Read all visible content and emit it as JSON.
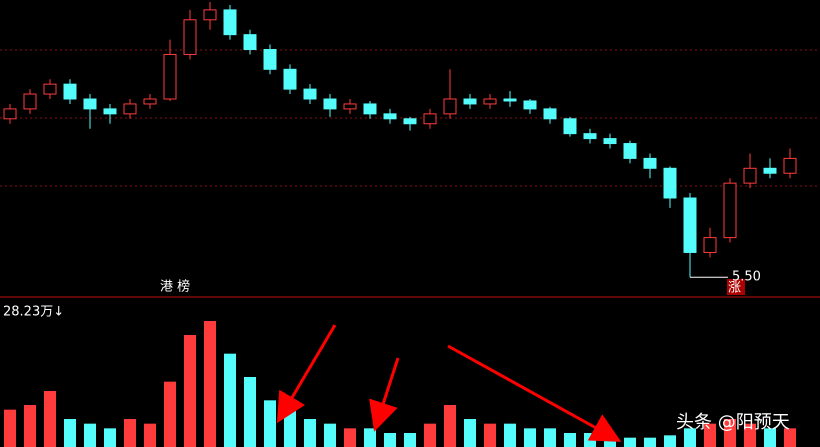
{
  "chart_data": [
    {
      "type": "candlestick",
      "open": [
        7.1,
        7.2,
        7.35,
        7.45,
        7.3,
        7.2,
        7.15,
        7.25,
        7.3,
        7.75,
        8.1,
        8.2,
        7.95,
        7.8,
        7.6,
        7.4,
        7.3,
        7.2,
        7.25,
        7.15,
        7.1,
        7.05,
        7.15,
        7.3,
        7.25,
        7.3,
        7.28,
        7.2,
        7.1,
        6.95,
        6.9,
        6.85,
        6.7,
        6.6,
        6.3,
        5.75,
        5.9,
        6.45,
        6.6,
        6.55
      ],
      "high": [
        7.25,
        7.4,
        7.5,
        7.5,
        7.35,
        7.25,
        7.3,
        7.35,
        7.9,
        8.2,
        8.28,
        8.25,
        8.0,
        7.85,
        7.65,
        7.45,
        7.35,
        7.3,
        7.28,
        7.2,
        7.12,
        7.2,
        7.6,
        7.35,
        7.35,
        7.38,
        7.3,
        7.22,
        7.12,
        7.0,
        6.95,
        6.88,
        6.75,
        6.62,
        6.35,
        6.0,
        6.5,
        6.75,
        6.7,
        6.8
      ],
      "low": [
        7.05,
        7.15,
        7.3,
        7.25,
        7.0,
        7.05,
        7.1,
        7.2,
        7.28,
        7.7,
        8.0,
        7.9,
        7.75,
        7.55,
        7.35,
        7.25,
        7.12,
        7.15,
        7.1,
        7.05,
        6.98,
        7.0,
        7.1,
        7.2,
        7.2,
        7.22,
        7.15,
        7.05,
        6.92,
        6.85,
        6.8,
        6.65,
        6.5,
        6.2,
        5.5,
        5.7,
        5.85,
        6.4,
        6.5,
        6.5
      ],
      "close": [
        7.2,
        7.35,
        7.45,
        7.3,
        7.2,
        7.15,
        7.25,
        7.3,
        7.75,
        8.1,
        8.2,
        7.95,
        7.8,
        7.6,
        7.4,
        7.3,
        7.2,
        7.25,
        7.15,
        7.1,
        7.05,
        7.15,
        7.3,
        7.25,
        7.3,
        7.28,
        7.2,
        7.1,
        6.95,
        6.9,
        6.85,
        6.7,
        6.6,
        6.3,
        5.75,
        5.9,
        6.45,
        6.6,
        6.55,
        6.7
      ],
      "ylim": [
        5.3,
        8.3
      ],
      "up_color": "#ff3c3c",
      "down_color": "#54fcfc",
      "tag": "港 榜",
      "low_label": "5.50",
      "low_index": 34,
      "low_tag": "涨"
    },
    {
      "type": "bar",
      "label": "28.23万↓",
      "values": [
        8,
        9,
        12,
        6,
        5,
        4,
        6,
        5,
        14,
        24,
        27,
        20,
        15,
        10,
        8,
        6,
        5,
        4,
        4,
        3,
        3,
        5,
        9,
        6,
        5,
        5,
        4,
        4,
        3,
        3,
        2.5,
        2,
        2,
        2.5,
        4,
        5,
        6,
        5,
        4,
        4
      ],
      "ylim": [
        0,
        30
      ]
    }
  ],
  "watermark": "头条 @阳预天"
}
